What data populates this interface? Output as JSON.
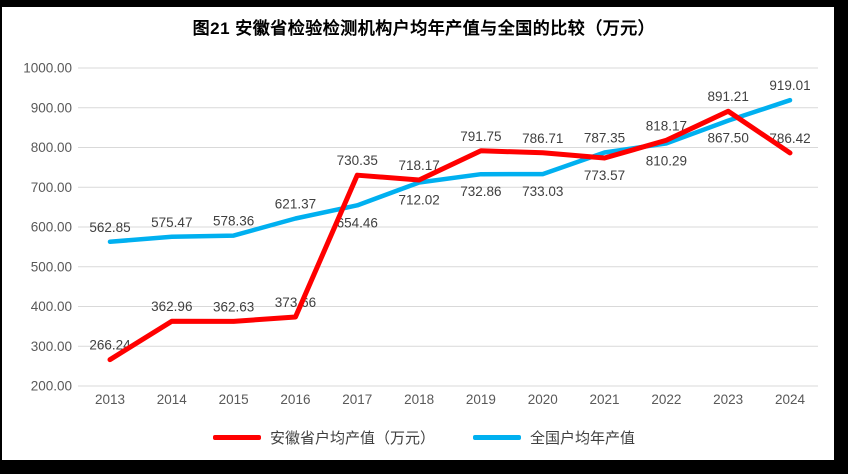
{
  "title": "图21 安徽省检验检测机构户均年产值与全国的比较（万元）",
  "chart_data": {
    "type": "line",
    "x": [
      "2013",
      "2014",
      "2015",
      "2016",
      "2017",
      "2018",
      "2019",
      "2020",
      "2021",
      "2022",
      "2023",
      "2024"
    ],
    "series": [
      {
        "name": "安徽省户均产值（万元）",
        "color": "#FF0000",
        "values": [
          266.24,
          362.96,
          362.63,
          373.66,
          730.35,
          718.17,
          791.75,
          786.71,
          773.57,
          818.17,
          891.21,
          786.42
        ],
        "label_positions": [
          "above",
          "above",
          "above",
          "above",
          "above",
          "above",
          "above",
          "above",
          "below",
          "above",
          "above",
          "above"
        ]
      },
      {
        "name": "全国户均年产值",
        "color": "#00B0F0",
        "values": [
          562.85,
          575.47,
          578.36,
          621.37,
          654.46,
          712.02,
          732.86,
          733.03,
          787.35,
          810.29,
          867.5,
          919.01
        ],
        "label_positions": [
          "above",
          "above",
          "above",
          "above",
          "below",
          "below",
          "below",
          "below",
          "above",
          "below",
          "below",
          "above"
        ]
      }
    ],
    "ylim": [
      200,
      1000
    ],
    "y_tick_step": 100,
    "y_tick_labels": [
      "1000.00",
      "900.00",
      "800.00",
      "700.00",
      "600.00",
      "500.00",
      "400.00",
      "300.00",
      "200.00"
    ],
    "grid": true,
    "legend_position": "bottom",
    "value_decimals": 2,
    "colors": {
      "gridline": "#D9D9D9",
      "axis_tick_text": "#595959",
      "data_label_text": "#404040",
      "title_text": "#000000",
      "frame": "#000000",
      "background": "#FFFFFF"
    }
  }
}
